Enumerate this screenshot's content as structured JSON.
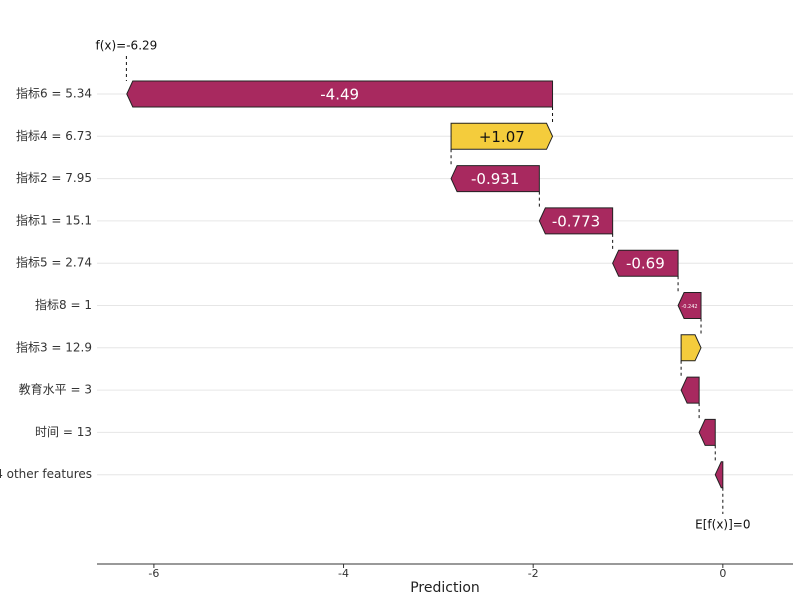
{
  "chart_data": {
    "type": "waterfall",
    "xlabel": "Prediction",
    "categories": [
      "指标6 = 5.34",
      "指标4 = 6.73",
      "指标2 = 7.95",
      "指标1 = 15.1",
      "指标5 = 2.74",
      "指标8 = 1",
      "指标3 = 12.9",
      "教育水平 = 3",
      "时间 = 13",
      "4 other features"
    ],
    "values": [
      -4.49,
      1.07,
      -0.931,
      -0.773,
      -0.69,
      -0.242,
      0.21,
      -0.19,
      -0.17,
      -0.08
    ],
    "value_labels": [
      "-4.49",
      "+1.07",
      "-0.931",
      "-0.773",
      "-0.69",
      "-0.242",
      null,
      null,
      null,
      null
    ],
    "base_value": 0,
    "annotations": [
      {
        "text": "f(x)=-6.29",
        "value": -6.29
      },
      {
        "text": "E[f(x)]=0",
        "value": 0
      }
    ],
    "color_negative": "#a8295f",
    "color_positive": "#f4cc3c",
    "xlim": [
      -6.6,
      0.74
    ],
    "xticks": [
      -6,
      -4,
      -2,
      0
    ],
    "grid": true
  }
}
